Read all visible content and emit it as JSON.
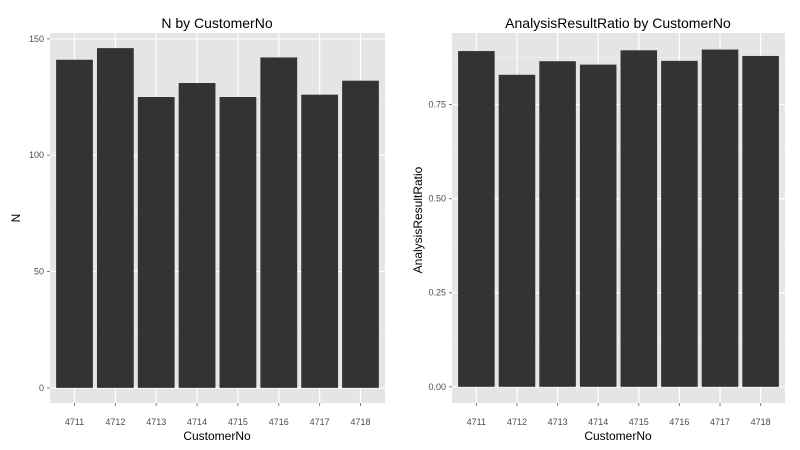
{
  "colors": {
    "panel_background": "#e5e5e5",
    "major_grid": "#ffffff",
    "minor_grid": "#f2f2f2",
    "bar_fill": "#333333",
    "tick_text": "#4d4d4d"
  },
  "chart_data": [
    {
      "type": "bar",
      "title": "N by CustomerNo",
      "xlabel": "CustomerNo",
      "ylabel": "N",
      "categories": [
        "4711",
        "4712",
        "4713",
        "4714",
        "4715",
        "4716",
        "4717",
        "4718"
      ],
      "values": [
        141,
        146,
        125,
        131,
        125,
        142,
        126,
        132
      ],
      "ylim": [
        -6.5,
        152.5
      ],
      "yticks": [
        0,
        50,
        100,
        150
      ],
      "ytick_labels": [
        "0",
        "50",
        "100",
        "150"
      ],
      "grid": true,
      "legend": "none"
    },
    {
      "type": "bar",
      "title": "AnalysisResultRatio by CustomerNo",
      "xlabel": "CustomerNo",
      "ylabel": "AnalysisResultRatio",
      "categories": [
        "4711",
        "4712",
        "4713",
        "4714",
        "4715",
        "4716",
        "4717",
        "4718"
      ],
      "values": [
        0.892,
        0.829,
        0.865,
        0.856,
        0.894,
        0.866,
        0.896,
        0.879
      ],
      "ylim": [
        -0.043,
        0.94
      ],
      "yticks": [
        0,
        0.25,
        0.5,
        0.75
      ],
      "ytick_labels": [
        "0.00",
        "0.25",
        "0.50",
        "0.75"
      ],
      "grid": true,
      "legend": "none"
    }
  ]
}
